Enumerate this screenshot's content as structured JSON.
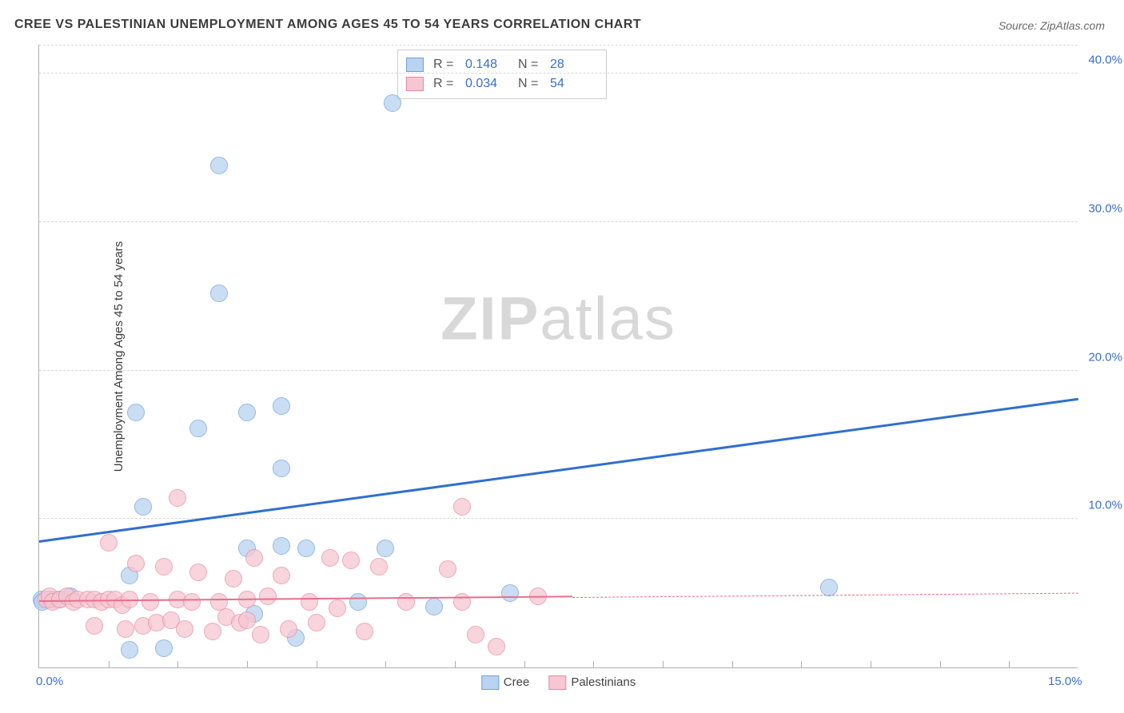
{
  "title": "CREE VS PALESTINIAN UNEMPLOYMENT AMONG AGES 45 TO 54 YEARS CORRELATION CHART",
  "source": "Source: ZipAtlas.com",
  "ylabel": "Unemployment Among Ages 45 to 54 years",
  "watermark_zip": "ZIP",
  "watermark_atlas": "atlas",
  "chart": {
    "type": "scatter",
    "xlim": [
      0,
      15
    ],
    "ylim": [
      0,
      42
    ],
    "x_ticks_major": [
      0,
      15
    ],
    "x_tick_labels": [
      "0.0%",
      "15.0%"
    ],
    "x_ticks_minor_step": 1,
    "y_ticks": [
      10,
      20,
      30,
      40
    ],
    "y_tick_labels": [
      "10.0%",
      "20.0%",
      "30.0%",
      "40.0%"
    ],
    "grid_color": "#d8d8d8",
    "axis_color": "#b0b0b0",
    "background_color": "#ffffff",
    "marker_radius": 11,
    "marker_border_width": 1.5,
    "series": [
      {
        "name": "Cree",
        "fill": "#b9d3f0",
        "stroke": "#6fa0de",
        "R": "0.148",
        "N": "28",
        "trend_y0": 8.4,
        "trend_y15": 18.0,
        "trend_solid_until": 15.0,
        "trend_color": "#2f6fd0",
        "trend_width": 3,
        "points": [
          [
            0.03,
            4.6
          ],
          [
            0.05,
            4.4
          ],
          [
            0.16,
            4.6
          ],
          [
            0.22,
            4.6
          ],
          [
            0.3,
            4.6
          ],
          [
            0.45,
            4.8
          ],
          [
            1.3,
            1.2
          ],
          [
            1.3,
            6.2
          ],
          [
            1.8,
            1.3
          ],
          [
            1.5,
            10.8
          ],
          [
            1.4,
            17.2
          ],
          [
            3.0,
            17.2
          ],
          [
            3.0,
            8.0
          ],
          [
            2.3,
            16.1
          ],
          [
            2.6,
            25.2
          ],
          [
            2.6,
            33.8
          ],
          [
            3.5,
            17.6
          ],
          [
            3.5,
            13.4
          ],
          [
            3.5,
            8.2
          ],
          [
            3.7,
            2.0
          ],
          [
            3.1,
            3.6
          ],
          [
            3.85,
            8.0
          ],
          [
            5.0,
            8.0
          ],
          [
            5.1,
            38.0
          ],
          [
            4.6,
            4.4
          ],
          [
            5.7,
            4.1
          ],
          [
            6.8,
            5.0
          ],
          [
            11.4,
            5.4
          ]
        ]
      },
      {
        "name": "Palestinians",
        "fill": "#f6c6d2",
        "stroke": "#e98ba2",
        "R": "0.034",
        "N": "54",
        "trend_y0": 4.4,
        "trend_y15": 5.0,
        "trend_solid_until": 7.7,
        "trend_color": "#e66f8c",
        "trend_width": 2.5,
        "points": [
          [
            0.1,
            4.6
          ],
          [
            0.15,
            4.8
          ],
          [
            0.2,
            4.4
          ],
          [
            0.3,
            4.6
          ],
          [
            0.4,
            4.8
          ],
          [
            0.5,
            4.4
          ],
          [
            0.55,
            4.6
          ],
          [
            0.7,
            4.6
          ],
          [
            0.8,
            4.6
          ],
          [
            0.8,
            2.8
          ],
          [
            0.9,
            4.4
          ],
          [
            1.0,
            4.6
          ],
          [
            1.0,
            8.4
          ],
          [
            1.1,
            4.6
          ],
          [
            1.2,
            4.2
          ],
          [
            1.25,
            2.6
          ],
          [
            1.3,
            4.6
          ],
          [
            1.4,
            7.0
          ],
          [
            1.5,
            2.8
          ],
          [
            1.6,
            4.4
          ],
          [
            1.7,
            3.0
          ],
          [
            1.8,
            6.8
          ],
          [
            1.9,
            3.2
          ],
          [
            2.0,
            4.6
          ],
          [
            2.0,
            11.4
          ],
          [
            2.1,
            2.6
          ],
          [
            2.2,
            4.4
          ],
          [
            2.3,
            6.4
          ],
          [
            2.5,
            2.4
          ],
          [
            2.6,
            4.4
          ],
          [
            2.7,
            3.4
          ],
          [
            2.8,
            6.0
          ],
          [
            2.9,
            3.0
          ],
          [
            3.0,
            4.6
          ],
          [
            3.0,
            3.2
          ],
          [
            3.1,
            7.4
          ],
          [
            3.2,
            2.2
          ],
          [
            3.3,
            4.8
          ],
          [
            3.5,
            6.2
          ],
          [
            3.6,
            2.6
          ],
          [
            3.9,
            4.4
          ],
          [
            4.0,
            3.0
          ],
          [
            4.2,
            7.4
          ],
          [
            4.3,
            4.0
          ],
          [
            4.5,
            7.2
          ],
          [
            4.7,
            2.4
          ],
          [
            4.9,
            6.8
          ],
          [
            5.3,
            4.4
          ],
          [
            5.9,
            6.6
          ],
          [
            6.1,
            4.4
          ],
          [
            6.1,
            10.8
          ],
          [
            6.3,
            2.2
          ],
          [
            6.6,
            1.4
          ],
          [
            7.2,
            4.8
          ]
        ]
      }
    ]
  },
  "legend_bottom": [
    {
      "label": "Cree",
      "fill": "#b9d3f0",
      "stroke": "#6fa0de"
    },
    {
      "label": "Palestinians",
      "fill": "#f6c6d2",
      "stroke": "#e98ba2"
    }
  ]
}
